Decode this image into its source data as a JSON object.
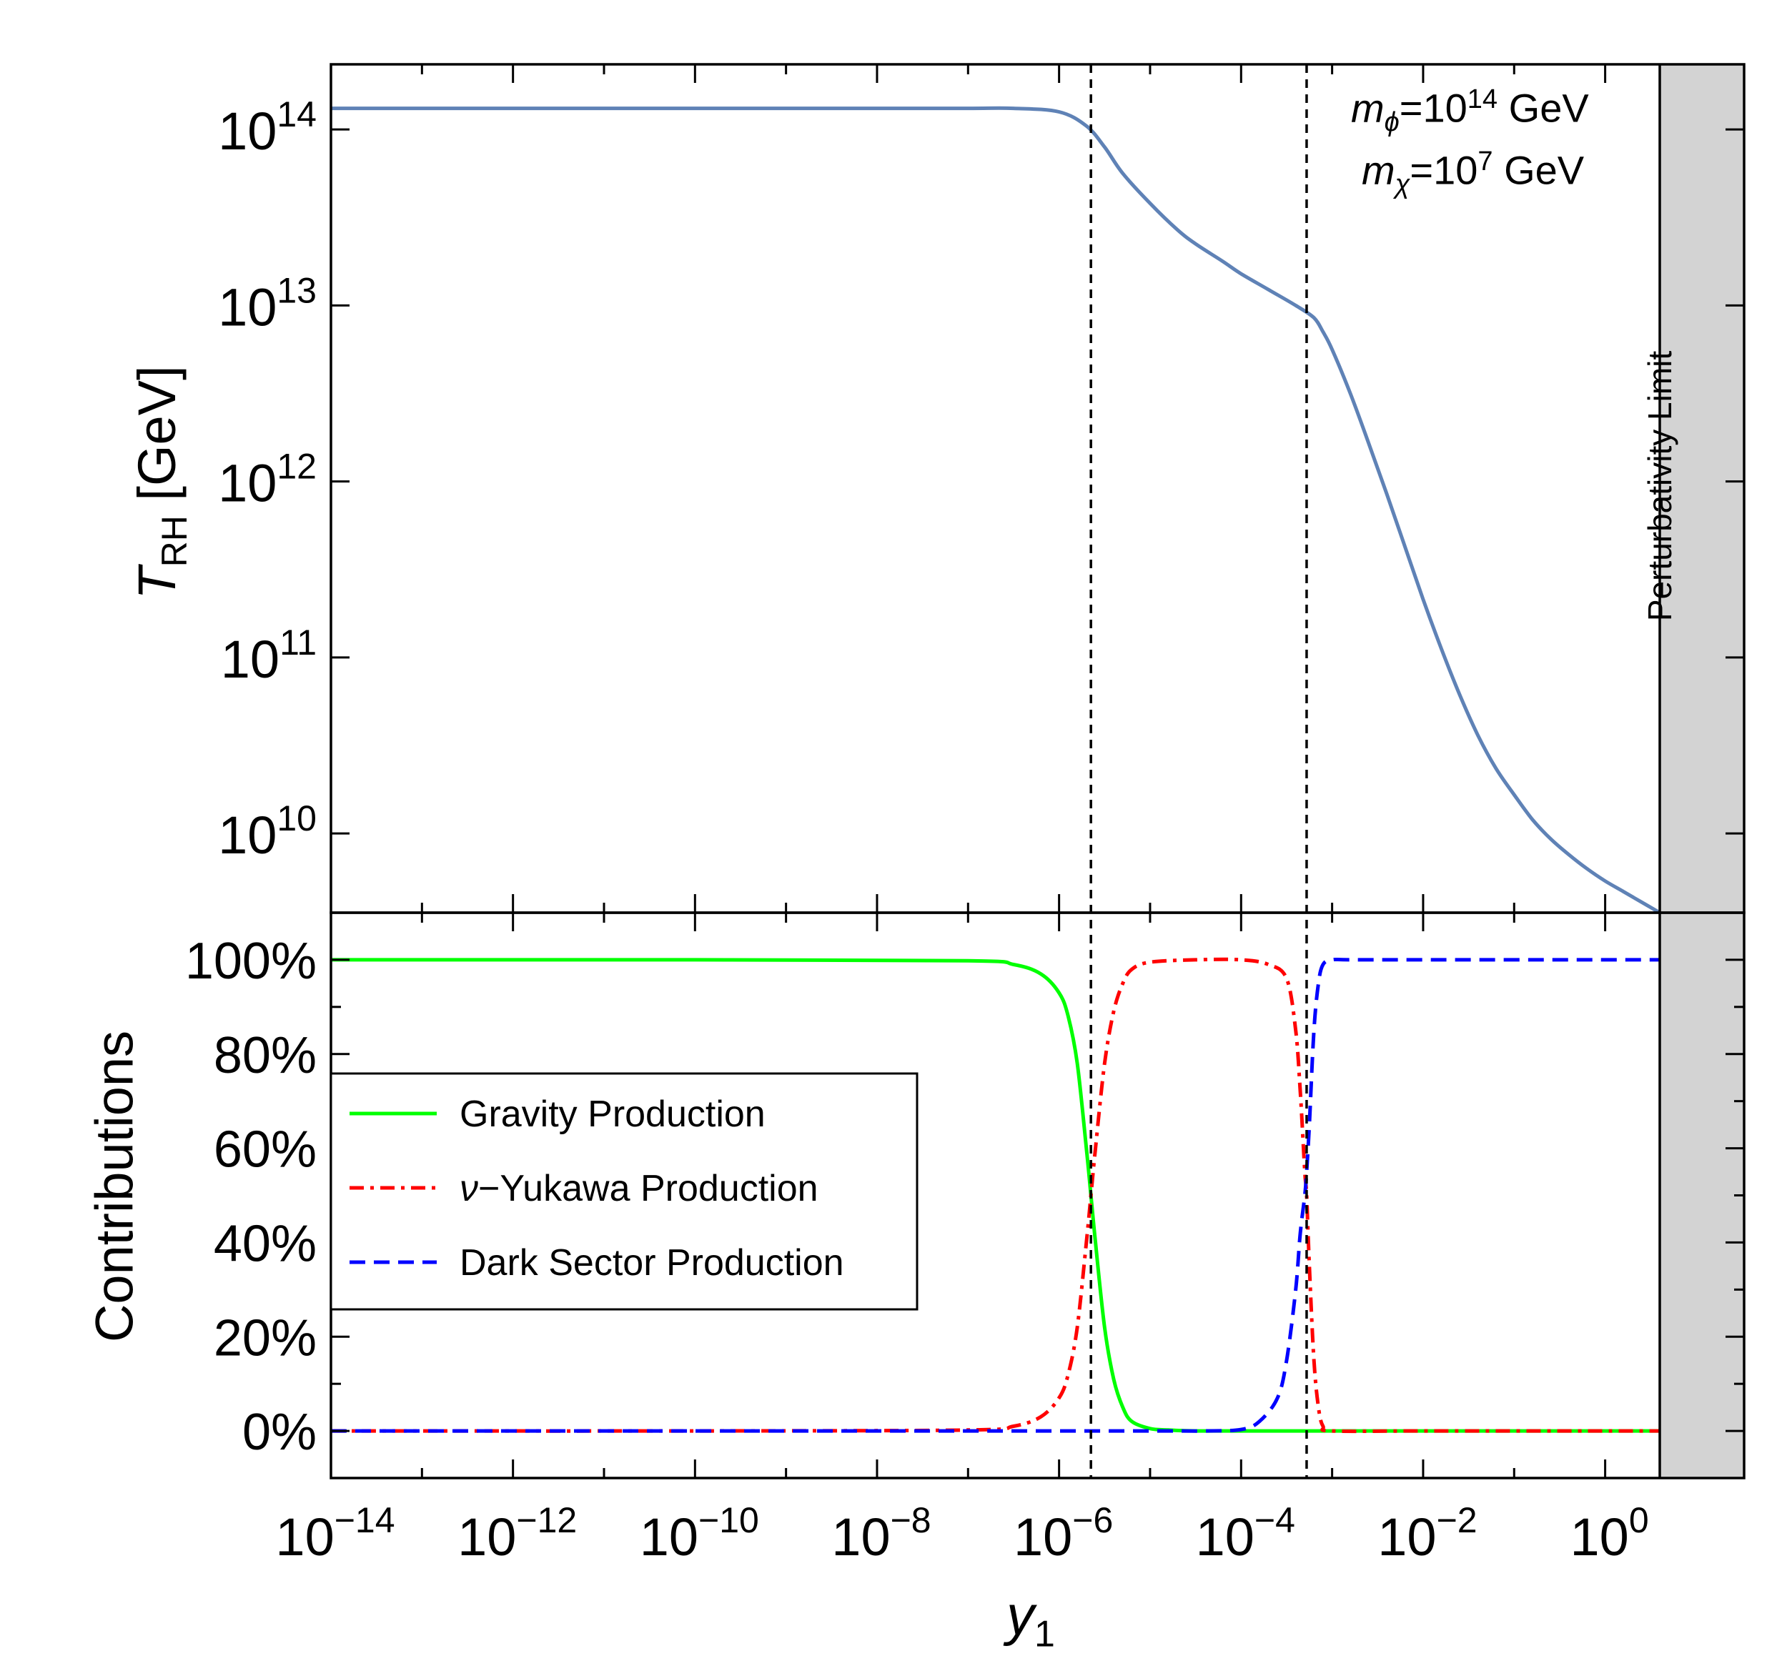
{
  "chart_data": [
    {
      "type": "line",
      "panel": "top",
      "ylabel": {
        "main": "T",
        "sub": "RH",
        "unit": "[GeV]"
      },
      "xscale": "log",
      "yscale": "log",
      "xlim_exp": [
        -14,
        0.6
      ],
      "ylim_exp": [
        9.55,
        14.37
      ],
      "y_ticks": [
        {
          "base": "10",
          "exp": "10"
        },
        {
          "base": "10",
          "exp": "11"
        },
        {
          "base": "10",
          "exp": "12"
        },
        {
          "base": "10",
          "exp": "13"
        },
        {
          "base": "10",
          "exp": "14"
        }
      ],
      "annotation": [
        {
          "m": "m",
          "sub": "ϕ",
          "eq": "=10",
          "exp": "14",
          "unit": " GeV"
        },
        {
          "m": "m",
          "sub": "χ",
          "eq": "=10",
          "exp": "7",
          "unit": " GeV"
        }
      ],
      "series": [
        {
          "color": "#5f82b6",
          "x_exp": [
            -14,
            -12,
            -10,
            -8,
            -7,
            -6.5,
            -6,
            -5.7,
            -5.5,
            -5.3,
            -5.0,
            -4.7,
            -4.5,
            -4.2,
            -4.0,
            -3.7,
            -3.4,
            -3.2,
            -3.1,
            -3.0,
            -2.8,
            -2.6,
            -2.4,
            -2.2,
            -2.0,
            -1.8,
            -1.6,
            -1.4,
            -1.2,
            -1.0,
            -0.8,
            -0.6,
            -0.4,
            -0.2,
            0,
            0.2,
            0.4,
            0.6
          ],
          "y_exp": [
            14.12,
            14.12,
            14.12,
            14.12,
            14.12,
            14.12,
            14.1,
            14.02,
            13.9,
            13.75,
            13.58,
            13.43,
            13.35,
            13.25,
            13.18,
            13.09,
            13.0,
            12.93,
            12.85,
            12.75,
            12.5,
            12.22,
            11.93,
            11.63,
            11.33,
            11.05,
            10.79,
            10.56,
            10.37,
            10.22,
            10.08,
            9.97,
            9.88,
            9.8,
            9.73,
            9.67,
            9.61,
            9.55
          ]
        }
      ],
      "vlines_exp": [
        -5.65,
        -3.28
      ]
    },
    {
      "type": "line",
      "panel": "bottom",
      "ylabel": "Contributions",
      "xlabel": {
        "main": "y",
        "sub": "1"
      },
      "xscale": "log",
      "xlim_exp": [
        -14,
        0.6
      ],
      "ylim": [
        -0.1,
        1.1
      ],
      "y_ticks": [
        "0%",
        "20%",
        "40%",
        "60%",
        "80%",
        "100%"
      ],
      "x_ticks": [
        {
          "base": "10",
          "exp": "−14",
          "v": -14
        },
        {
          "base": "10",
          "exp": "−12",
          "v": -12
        },
        {
          "base": "10",
          "exp": "−10",
          "v": -10
        },
        {
          "base": "10",
          "exp": "−8",
          "v": -8
        },
        {
          "base": "10",
          "exp": "−6",
          "v": -6
        },
        {
          "base": "10",
          "exp": "−4",
          "v": -4
        },
        {
          "base": "10",
          "exp": "−2",
          "v": -2
        },
        {
          "base": "10",
          "exp": "0",
          "v": 0
        }
      ],
      "legend": [
        {
          "name": "Gravity Production",
          "color": "#00ff00",
          "style": "solid",
          "italic_prefix": ""
        },
        {
          "name": "−Yukawa Production",
          "color": "#ff0000",
          "style": "dashdot",
          "italic_prefix": "ν"
        },
        {
          "name": "Dark Sector Production",
          "color": "#0000ff",
          "style": "dashed",
          "italic_prefix": ""
        }
      ],
      "legend_position": "center-left",
      "series": [
        {
          "name": "Gravity Production",
          "x_exp": [
            -14,
            -10,
            -7,
            -6.5,
            -6.2,
            -6.0,
            -5.9,
            -5.8,
            -5.7,
            -5.65,
            -5.6,
            -5.5,
            -5.4,
            -5.3,
            -5.2,
            -5.0,
            -4.8,
            -4.5,
            -4.0,
            -3.5,
            -3.28,
            -3.0,
            -2.0,
            0,
            0.6
          ],
          "y": [
            1.0,
            1.0,
            0.998,
            0.99,
            0.97,
            0.93,
            0.88,
            0.78,
            0.6,
            0.5,
            0.4,
            0.22,
            0.11,
            0.05,
            0.02,
            0.005,
            0.002,
            0.0,
            0.0,
            0.0,
            0.0,
            0.0,
            0.0,
            0.0,
            0.0
          ]
        },
        {
          "name": "ν−Yukawa Production",
          "x_exp": [
            -14,
            -10,
            -7,
            -6.5,
            -6.2,
            -6.0,
            -5.9,
            -5.8,
            -5.7,
            -5.65,
            -5.6,
            -5.5,
            -5.4,
            -5.3,
            -5.2,
            -5.0,
            -4.5,
            -4.0,
            -3.7,
            -3.5,
            -3.4,
            -3.35,
            -3.3,
            -3.28,
            -3.25,
            -3.2,
            -3.15,
            -3.1,
            -3.0,
            -2.0,
            0,
            0.6
          ],
          "y": [
            0.0,
            0.0,
            0.002,
            0.01,
            0.03,
            0.07,
            0.12,
            0.22,
            0.4,
            0.5,
            0.6,
            0.78,
            0.89,
            0.95,
            0.98,
            0.995,
            1.0,
            1.0,
            0.99,
            0.96,
            0.85,
            0.72,
            0.55,
            0.5,
            0.35,
            0.15,
            0.05,
            0.01,
            0.0,
            0.0,
            0.0,
            0.0
          ]
        },
        {
          "name": "Dark Sector Production",
          "x_exp": [
            -14,
            -10,
            -7,
            -5.0,
            -4.4,
            -4.0,
            -3.8,
            -3.6,
            -3.5,
            -3.4,
            -3.35,
            -3.3,
            -3.28,
            -3.25,
            -3.2,
            -3.15,
            -3.1,
            -3.0,
            -2.8,
            -2.0,
            0,
            0.6
          ],
          "y": [
            0.0,
            0.0,
            0.0,
            0.0,
            0.0,
            0.003,
            0.02,
            0.07,
            0.15,
            0.3,
            0.42,
            0.5,
            0.55,
            0.65,
            0.85,
            0.95,
            0.99,
            1.0,
            1.0,
            1.0,
            1.0,
            1.0
          ]
        }
      ],
      "vlines_exp": [
        -5.65,
        -3.28
      ]
    }
  ],
  "shaded_region": {
    "label": "Perturbativity Limit",
    "x_exp_from": 0.6,
    "color": "#d3d3d3"
  }
}
